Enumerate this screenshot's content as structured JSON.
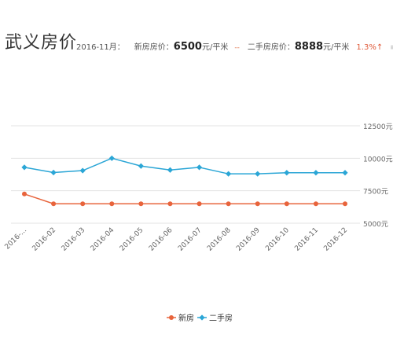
{
  "header": {
    "title": "武义房价",
    "period": "2016-11月：",
    "new_label": "新房房价：",
    "new_price": "6500",
    "new_unit": "元/平米",
    "separator": "--",
    "second_label": "二手房房价：",
    "second_price": "8888",
    "second_unit": "元/平米",
    "change": "1.3%↑",
    "menu_icon": "list-icon"
  },
  "chart_data": {
    "type": "line",
    "categories": [
      "2016-...",
      "2016-02",
      "2016-03",
      "2016-04",
      "2016-05",
      "2016-06",
      "2016-07",
      "2016-08",
      "2016-09",
      "2016-10",
      "2016-11",
      "2016-12"
    ],
    "series": [
      {
        "name": "新房",
        "color": "#e8643c",
        "marker": "circle",
        "values": [
          7250,
          6500,
          6500,
          6500,
          6500,
          6500,
          6500,
          6500,
          6500,
          6500,
          6500,
          6500
        ]
      },
      {
        "name": "二手房",
        "color": "#2ba6d6",
        "marker": "diamond",
        "values": [
          9300,
          8900,
          9050,
          10000,
          9400,
          9100,
          9300,
          8800,
          8800,
          8888,
          8888,
          8888
        ]
      }
    ],
    "ylim": [
      5000,
      12500
    ],
    "yticks": [
      "12500元",
      "10000元",
      "7500元",
      "5000元"
    ],
    "ytick_values": [
      12500,
      10000,
      7500,
      5000
    ],
    "grid": true,
    "legend": "bottom-center"
  }
}
